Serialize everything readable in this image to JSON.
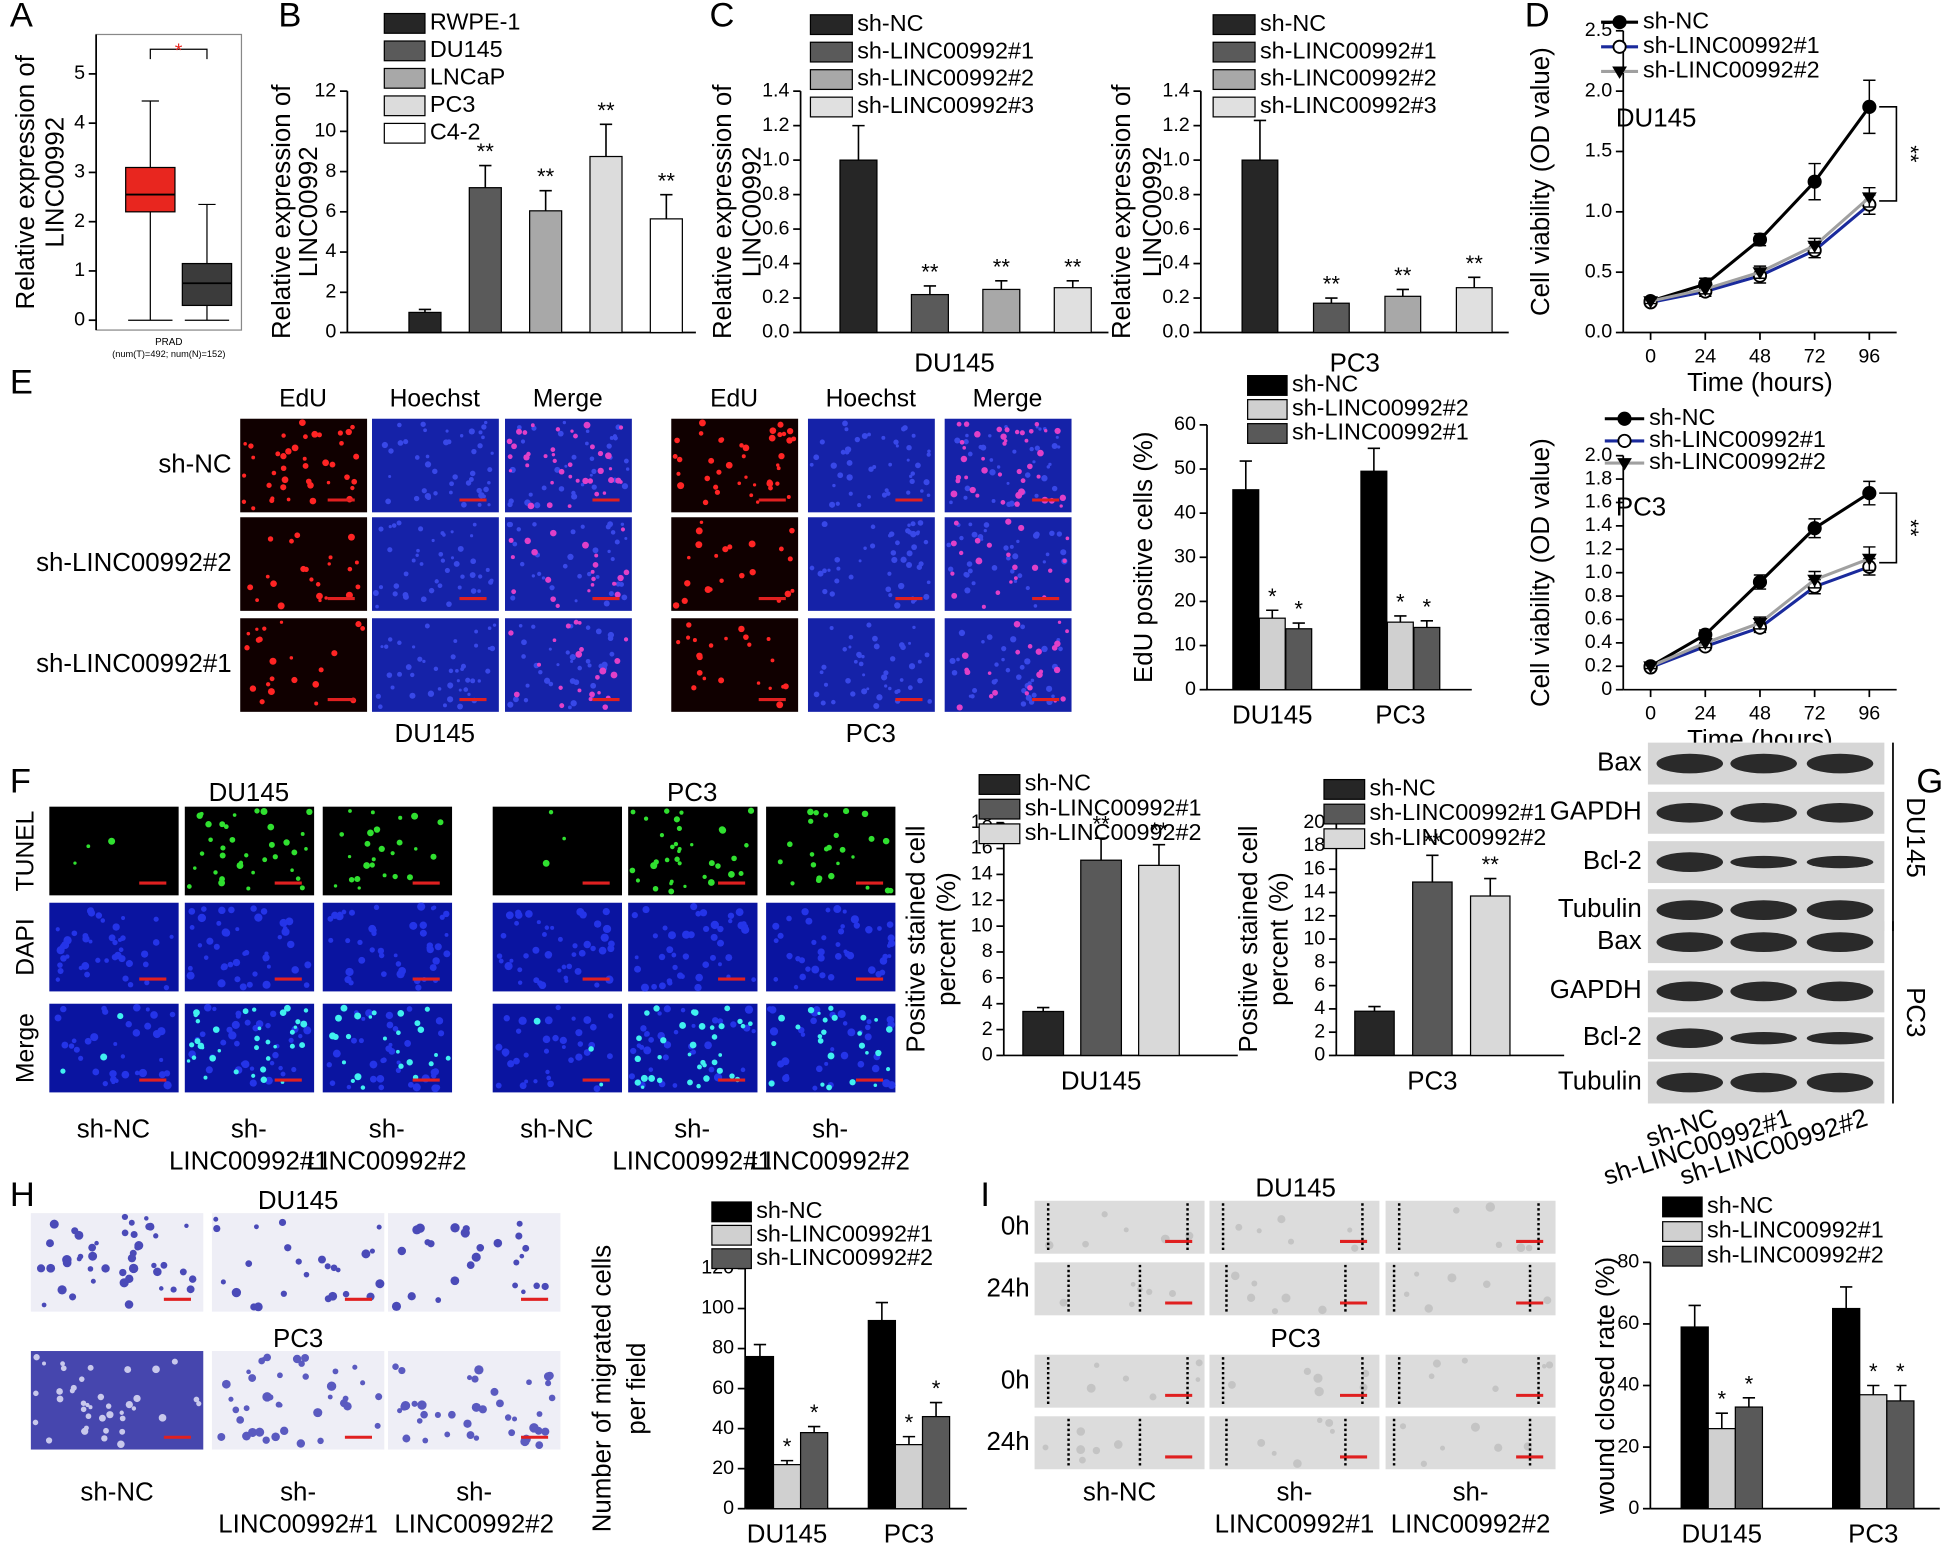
{
  "chart_data": [
    {
      "type": "box",
      "ylabel": [
        "Relative expression of",
        "LINC00992"
      ],
      "ylim": [
        -0.2,
        5.8
      ],
      "yticks": [
        0,
        1,
        2,
        3,
        4,
        5
      ],
      "xlabel": "PRAD",
      "note": "(num(T)=492; num(N)=152)",
      "annotation": "*",
      "boxes": [
        {
          "color": "#e8261f",
          "whislo": 0,
          "q1": 2.2,
          "median": 2.55,
          "q3": 3.1,
          "whishi": 4.45
        },
        {
          "color": "#3b3b3b",
          "whislo": 0,
          "q1": 0.3,
          "median": 0.75,
          "q3": 1.15,
          "whishi": 2.35
        }
      ]
    },
    {
      "type": "bar",
      "ylabel": [
        "Relative expression of",
        "LINC00992"
      ],
      "ylim": [
        0,
        12
      ],
      "yticks": [
        0,
        2,
        4,
        6,
        8,
        10,
        12
      ],
      "series": [
        {
          "name": "RWPE-1",
          "color": "#262626",
          "values": [
            1
          ],
          "errors": [
            0.15
          ]
        },
        {
          "name": "DU145",
          "color": "#5a5a5a",
          "values": [
            7.2
          ],
          "errors": [
            1.1
          ],
          "annotations": [
            "**"
          ]
        },
        {
          "name": "LNCaP",
          "color": "#a8a8a8",
          "values": [
            6.05
          ],
          "errors": [
            1.0
          ],
          "annotations": [
            "**"
          ]
        },
        {
          "name": "PC3",
          "color": "#dcdcdc",
          "values": [
            8.75
          ],
          "errors": [
            1.6
          ],
          "annotations": [
            "**"
          ]
        },
        {
          "name": "C4-2",
          "color": "#ffffff",
          "values": [
            5.65
          ],
          "errors": [
            1.2
          ],
          "annotations": [
            "**"
          ]
        }
      ]
    },
    {
      "type": "bar",
      "ylabel": [
        "Relative expression of",
        "LINC00992"
      ],
      "xlabel": "DU145",
      "ylim": [
        0,
        1.4
      ],
      "yticks": [
        {
          "value": 0,
          "label": "0.0"
        },
        0.2,
        0.4,
        0.6,
        0.8,
        {
          "value": 1,
          "label": "1.0"
        },
        1.2,
        1.4
      ],
      "series": [
        {
          "name": "sh-NC",
          "color": "#262626",
          "values": [
            1.0
          ],
          "errors": [
            0.2
          ]
        },
        {
          "name": "sh-LINC00992#1",
          "color": "#5a5a5a",
          "values": [
            0.22
          ],
          "errors": [
            0.05
          ],
          "annotations": [
            "**"
          ]
        },
        {
          "name": "sh-LINC00992#2",
          "color": "#a8a8a8",
          "values": [
            0.25
          ],
          "errors": [
            0.05
          ],
          "annotations": [
            "**"
          ]
        },
        {
          "name": "sh-LINC00992#3",
          "color": "#e0e0e0",
          "values": [
            0.26
          ],
          "errors": [
            0.04
          ],
          "annotations": [
            "**"
          ]
        }
      ]
    },
    {
      "type": "bar",
      "ylabel": [
        "Relative expression of",
        "LINC00992"
      ],
      "xlabel": "PC3",
      "ylim": [
        0,
        1.4
      ],
      "yticks": [
        {
          "value": 0,
          "label": "0.0"
        },
        0.2,
        0.4,
        0.6,
        0.8,
        {
          "value": 1,
          "label": "1.0"
        },
        1.2,
        1.4
      ],
      "series": [
        {
          "name": "sh-NC",
          "color": "#262626",
          "values": [
            1.0
          ],
          "errors": [
            0.23
          ]
        },
        {
          "name": "sh-LINC00992#1",
          "color": "#5a5a5a",
          "values": [
            0.17
          ],
          "errors": [
            0.03
          ],
          "annotations": [
            "**"
          ]
        },
        {
          "name": "sh-LINC00992#2",
          "color": "#a8a8a8",
          "values": [
            0.21
          ],
          "errors": [
            0.04
          ],
          "annotations": [
            "**"
          ]
        },
        {
          "name": "sh-LINC00992#3",
          "color": "#e0e0e0",
          "values": [
            0.26
          ],
          "errors": [
            0.06
          ],
          "annotations": [
            "**"
          ]
        }
      ]
    },
    {
      "type": "line",
      "label": "DU145",
      "annotation": "**",
      "xlabel": "Time (hours)",
      "ylabel": [
        "Cell viability (OD value)"
      ],
      "x": [
        0,
        24,
        48,
        72,
        96
      ],
      "xlim": [
        -12,
        108
      ],
      "xticks": [
        0,
        24,
        48,
        72,
        96
      ],
      "ylim": [
        0,
        2.5
      ],
      "yticks": [
        {
          "value": 0,
          "label": "0.0"
        },
        0.5,
        {
          "value": 1,
          "label": "1.0"
        },
        1.5,
        {
          "value": 2,
          "label": "2.0"
        },
        2.5
      ],
      "series": [
        {
          "name": "sh-NC",
          "color": "#000000",
          "marker": "circle",
          "values": [
            0.26,
            0.4,
            0.77,
            1.25,
            1.87
          ],
          "errors": [
            0.02,
            0.05,
            0.05,
            0.15,
            0.22
          ]
        },
        {
          "name": "sh-LINC00992#1",
          "color": "#1a2a9c",
          "marker": "open-circle",
          "values": [
            0.25,
            0.34,
            0.47,
            0.68,
            1.06
          ],
          "errors": [
            0.02,
            0.04,
            0.06,
            0.06,
            0.08
          ]
        },
        {
          "name": "sh-LINC00992#2",
          "color": "#a0a0a0",
          "marker": "triangle-down",
          "values": [
            0.26,
            0.36,
            0.5,
            0.72,
            1.12
          ],
          "errors": [
            0.02,
            0.04,
            0.05,
            0.06,
            0.08
          ]
        }
      ]
    },
    {
      "type": "line",
      "label": "PC3",
      "annotation": "**",
      "xlabel": "Time (hours)",
      "ylabel": [
        "Cell viability (OD value)"
      ],
      "x": [
        0,
        24,
        48,
        72,
        96
      ],
      "xlim": [
        -12,
        108
      ],
      "xticks": [
        0,
        24,
        48,
        72,
        96
      ],
      "ylim": [
        0,
        2.0
      ],
      "yticks": [
        0,
        0.2,
        0.4,
        0.6,
        0.8,
        {
          "value": 1,
          "label": "1.0"
        },
        1.2,
        1.4,
        1.6,
        1.8,
        {
          "value": 2,
          "label": "2.0"
        }
      ],
      "series": [
        {
          "name": "sh-NC",
          "color": "#000000",
          "marker": "circle",
          "values": [
            0.2,
            0.47,
            0.92,
            1.38,
            1.68
          ],
          "errors": [
            0.02,
            0.04,
            0.06,
            0.08,
            0.1
          ]
        },
        {
          "name": "sh-LINC00992#1",
          "color": "#1a2a9c",
          "marker": "open-circle",
          "values": [
            0.19,
            0.37,
            0.53,
            0.88,
            1.05
          ],
          "errors": [
            0.02,
            0.03,
            0.04,
            0.06,
            0.07
          ]
        },
        {
          "name": "sh-LINC00992#2",
          "color": "#a0a0a0",
          "marker": "triangle-down",
          "values": [
            0.2,
            0.4,
            0.57,
            0.94,
            1.12
          ],
          "errors": [
            0.02,
            0.04,
            0.05,
            0.07,
            0.1
          ]
        }
      ]
    },
    {
      "type": "bar",
      "ylabel": [
        "EdU positive cells (%)"
      ],
      "categories": [
        "DU145",
        "PC3"
      ],
      "ylim": [
        0,
        60
      ],
      "yticks": [
        0,
        10,
        20,
        30,
        40,
        50,
        60
      ],
      "series": [
        {
          "name": "sh-NC",
          "color": "#000000",
          "values": [
            45.3,
            49.5
          ],
          "errors": [
            6.5,
            5.2
          ]
        },
        {
          "name": "sh-LINC00992#2",
          "color": "#d0d0d0",
          "values": [
            16.2,
            15.3
          ],
          "errors": [
            1.8,
            1.4
          ],
          "annotations": [
            "*",
            "*"
          ]
        },
        {
          "name": "sh-LINC00992#1",
          "color": "#595959",
          "values": [
            13.8,
            14.1
          ],
          "errors": [
            1.3,
            1.5
          ],
          "annotations": [
            "*",
            "*"
          ]
        }
      ]
    },
    {
      "type": "bar",
      "ylabel": [
        "Positive stained cell",
        "percent (%)"
      ],
      "categories": [
        "DU145"
      ],
      "ylim": [
        0,
        18
      ],
      "yticks": [
        0,
        2,
        4,
        6,
        8,
        10,
        12,
        14,
        16,
        18
      ],
      "series": [
        {
          "name": "sh-NC",
          "color": "#262626",
          "values": [
            3.4
          ],
          "errors": [
            0.3
          ]
        },
        {
          "name": "sh-LINC00992#1",
          "color": "#595959",
          "values": [
            15.1
          ],
          "errors": [
            1.7
          ],
          "annotations": [
            "**"
          ]
        },
        {
          "name": "sh-LINC00992#2",
          "color": "#d9d9d9",
          "values": [
            14.7
          ],
          "errors": [
            1.6
          ],
          "annotations": [
            "**"
          ]
        }
      ]
    },
    {
      "type": "bar",
      "ylabel": [
        "Positive stained cell",
        "percent (%)"
      ],
      "categories": [
        "PC3"
      ],
      "ylim": [
        0,
        20
      ],
      "yticks": [
        0,
        2,
        4,
        6,
        8,
        10,
        12,
        14,
        16,
        18,
        20
      ],
      "series": [
        {
          "name": "sh-NC",
          "color": "#262626",
          "values": [
            3.8
          ],
          "errors": [
            0.4
          ]
        },
        {
          "name": "sh-LINC00992#1",
          "color": "#595959",
          "values": [
            14.9
          ],
          "errors": [
            2.3
          ],
          "annotations": [
            "**"
          ]
        },
        {
          "name": "sh-LINC00992#2",
          "color": "#d9d9d9",
          "values": [
            13.7
          ],
          "errors": [
            1.5
          ],
          "annotations": [
            "**"
          ]
        }
      ]
    },
    {
      "type": "bar",
      "ylabel": [
        "Number of migrated cells",
        "per field"
      ],
      "categories": [
        "DU145",
        "PC3"
      ],
      "ylim": [
        0,
        120
      ],
      "yticks": [
        0,
        20,
        40,
        60,
        80,
        100,
        120
      ],
      "series": [
        {
          "name": "sh-NC",
          "color": "#000000",
          "values": [
            76,
            94
          ],
          "errors": [
            6,
            9
          ]
        },
        {
          "name": "sh-LINC00992#1",
          "color": "#d0d0d0",
          "values": [
            22,
            32
          ],
          "errors": [
            2,
            4
          ],
          "annotations": [
            "*",
            "*"
          ]
        },
        {
          "name": "sh-LINC00992#2",
          "color": "#595959",
          "values": [
            38,
            46
          ],
          "errors": [
            3,
            7
          ],
          "annotations": [
            "*",
            "*"
          ]
        }
      ]
    },
    {
      "type": "bar",
      "ylabel": [
        "wound closed rate (%)"
      ],
      "categories": [
        "DU145",
        "PC3"
      ],
      "ylim": [
        0,
        80
      ],
      "yticks": [
        0,
        20,
        40,
        60,
        80
      ],
      "series": [
        {
          "name": "sh-NC",
          "color": "#000000",
          "values": [
            59,
            65
          ],
          "errors": [
            7,
            7
          ]
        },
        {
          "name": "sh-LINC00992#1",
          "color": "#d0d0d0",
          "values": [
            26,
            37
          ],
          "errors": [
            5,
            3
          ],
          "annotations": [
            "*",
            "*"
          ]
        },
        {
          "name": "sh-LINC00992#2",
          "color": "#595959",
          "values": [
            33,
            35
          ],
          "errors": [
            3,
            5
          ],
          "annotations": [
            "*",
            "*"
          ]
        }
      ]
    }
  ],
  "figure": {
    "panel_labels": [
      "A",
      "B",
      "C",
      "D",
      "E",
      "F",
      "G",
      "H",
      "I"
    ],
    "E": {
      "columns": [
        "EdU",
        "Hoechst",
        "Merge"
      ],
      "rows": [
        "sh-NC",
        "sh-LINC00992#2",
        "sh-LINC00992#1"
      ],
      "groups": [
        "DU145",
        "PC3"
      ]
    },
    "F": {
      "groups": [
        "DU145",
        "PC3"
      ],
      "rows": [
        "TUNEL",
        "DAPI",
        "Merge"
      ],
      "columns": [
        [
          "sh-NC"
        ],
        [
          "sh-",
          "LINC00992#1"
        ],
        [
          "sh-",
          "LINC00992#2"
        ]
      ]
    },
    "G": {
      "rows": [
        "Bax",
        "GAPDH",
        "Bcl-2",
        "Tubulin",
        "Bax",
        "GAPDH",
        "Bcl-2",
        "Tubulin"
      ],
      "groups": [
        "DU145",
        "PC3"
      ],
      "columns": [
        "sh-NC",
        "sh-LINC00992#1",
        "sh-LINC00992#2"
      ]
    },
    "H": {
      "groups": [
        "DU145",
        "PC3"
      ],
      "columns": [
        [
          "sh-NC"
        ],
        [
          "sh-",
          "LINC00992#1"
        ],
        [
          "sh-",
          "LINC00992#2"
        ]
      ]
    },
    "I": {
      "groups": [
        "DU145",
        "PC3"
      ],
      "rows": [
        "0h",
        "24h",
        "0h",
        "24h"
      ],
      "columns": [
        [
          "sh-NC"
        ],
        [
          "sh-",
          "LINC00992#1"
        ],
        [
          "sh-",
          "LINC00992#2"
        ]
      ]
    }
  }
}
